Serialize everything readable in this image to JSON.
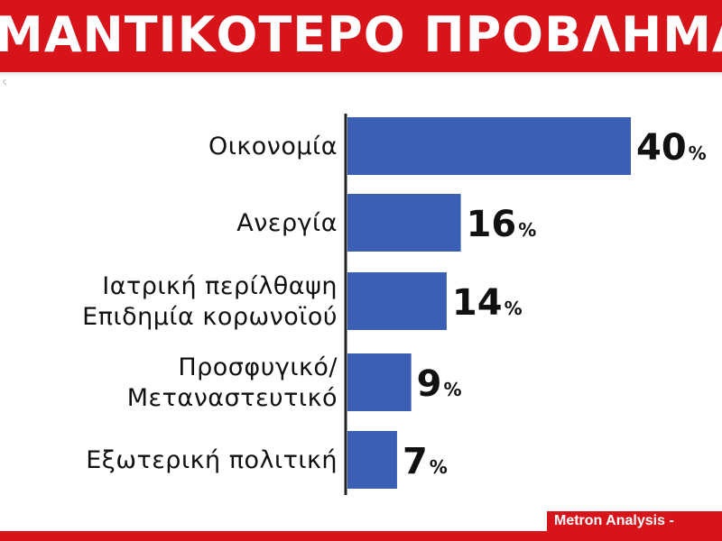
{
  "header": {
    "title": "ΜΑΝΤΙΚΟΤΕΡΟ ΠΡΟΒΛΗΜΑ ΤΗ"
  },
  "top_left_mark": "ς",
  "source": "Metron Analysis -",
  "colors": {
    "bar": "#3a5fb5",
    "header": "#d6141a"
  },
  "chart_data": {
    "type": "bar",
    "orientation": "horizontal",
    "title": "",
    "categories": [
      "Οικονομία",
      "Ανεργία",
      "Ιατρική περίλθαψη Επιδημία κορωνοϊού",
      "Προσφυγικό/ Μεταναστευτικό",
      "Εξωτερική πολιτική"
    ],
    "category_lines": [
      [
        "Οικονομία"
      ],
      [
        "Ανεργία"
      ],
      [
        "Ιατρική περίλθαψη",
        "Επιδημία κορωνοϊού"
      ],
      [
        "Προσφυγικό/",
        "Μεταναστευτικό"
      ],
      [
        "Εξωτερική πολιτική"
      ]
    ],
    "values": [
      40,
      16,
      14,
      9,
      7
    ],
    "value_labels": [
      "40",
      "16",
      "14",
      "9",
      "7"
    ],
    "unit": "%",
    "xlim": [
      0,
      40
    ],
    "grid": false,
    "legend": "none"
  }
}
